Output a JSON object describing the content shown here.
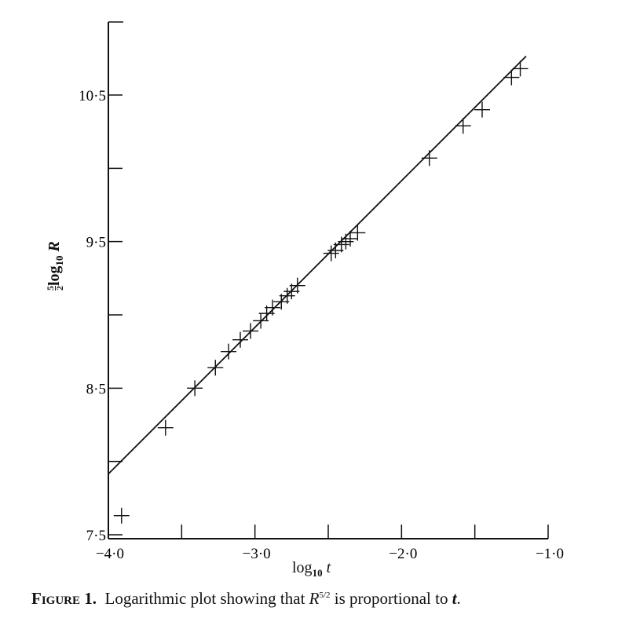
{
  "chart_data": {
    "type": "scatter",
    "title": "",
    "xlabel": "log10 t",
    "ylabel": "5/2 log10 R",
    "xlim": [
      -4.0,
      -1.0
    ],
    "ylim": [
      7.5,
      11.0
    ],
    "x_ticks": [
      -4.0,
      -3.5,
      -3.0,
      -2.5,
      -2.0,
      -1.5,
      -1.0
    ],
    "x_tick_labels": [
      "−4·0",
      "−3·0",
      "−2·0",
      "−1·0"
    ],
    "x_tick_label_values": [
      -4.0,
      -3.0,
      -2.0,
      -1.0
    ],
    "y_ticks": [
      7.5,
      8.0,
      8.5,
      9.0,
      9.5,
      10.0,
      10.5
    ],
    "y_tick_labels": [
      "7·5",
      "8·5",
      "9·5",
      "10·5"
    ],
    "y_tick_label_values": [
      7.5,
      8.5,
      9.5,
      10.5
    ],
    "grid": false,
    "marker": "plus",
    "points": [
      [
        -3.91,
        7.63
      ],
      [
        -3.61,
        8.23
      ],
      [
        -3.41,
        8.5
      ],
      [
        -3.27,
        8.64
      ],
      [
        -3.18,
        8.75
      ],
      [
        -3.1,
        8.83
      ],
      [
        -3.03,
        8.89
      ],
      [
        -2.96,
        8.96
      ],
      [
        -2.92,
        9.01
      ],
      [
        -2.88,
        9.05
      ],
      [
        -2.82,
        9.09
      ],
      [
        -2.78,
        9.13
      ],
      [
        -2.75,
        9.16
      ],
      [
        -2.71,
        9.2
      ],
      [
        -2.48,
        9.42
      ],
      [
        -2.45,
        9.44
      ],
      [
        -2.41,
        9.48
      ],
      [
        -2.38,
        9.5
      ],
      [
        -2.35,
        9.52
      ],
      [
        -2.3,
        9.56
      ],
      [
        -1.81,
        10.07
      ],
      [
        -1.58,
        10.29
      ],
      [
        -1.45,
        10.4
      ],
      [
        -1.25,
        10.62
      ],
      [
        -1.19,
        10.68
      ]
    ],
    "fit_line": {
      "x": [
        -4.0,
        -1.15
      ],
      "y": [
        7.915,
        10.765
      ]
    }
  },
  "labels": {
    "ylabel_frac_num": "5",
    "ylabel_frac_den": "2",
    "ylabel_log": "log",
    "ylabel_sub": "10",
    "ylabel_var": "R",
    "xlabel_log": "log",
    "xlabel_sub": "10",
    "xlabel_var": "t"
  },
  "caption": {
    "figure": "Figure 1.",
    "text_before": "Logarithmic plot showing that ",
    "var": "R",
    "exponent": "5/2",
    "text_after": " is proportional to ",
    "var2": "t",
    "end": "."
  }
}
